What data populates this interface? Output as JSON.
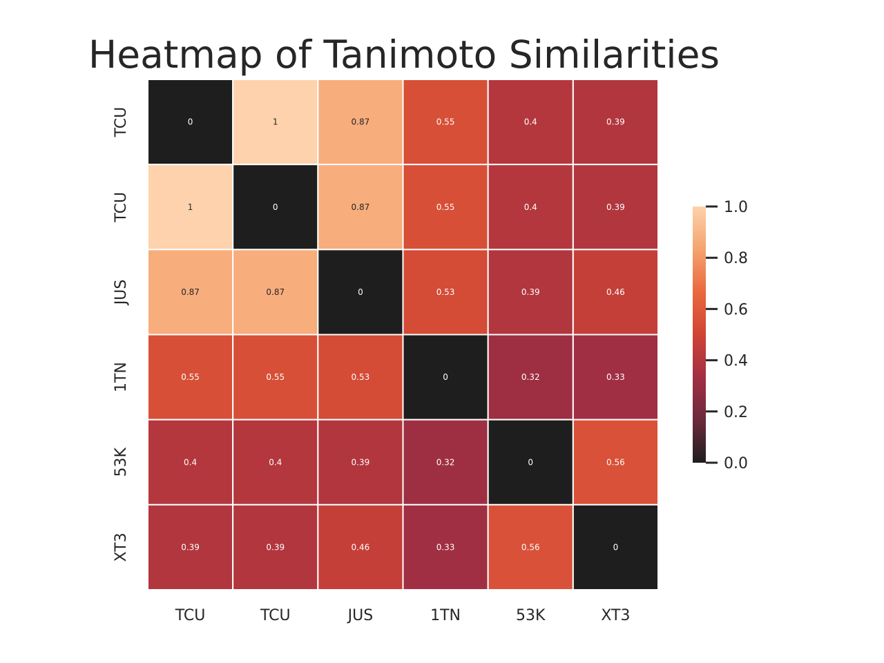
{
  "chart_data": {
    "type": "heatmap",
    "title": "Heatmap of Tanimoto Similarities",
    "x_labels": [
      "TCU",
      "TCU",
      "JUS",
      "1TN",
      "53K",
      "XT3"
    ],
    "y_labels": [
      "TCU",
      "TCU",
      "JUS",
      "1TN",
      "53K",
      "XT3"
    ],
    "values": [
      [
        0,
        1,
        0.87,
        0.55,
        0.4,
        0.39
      ],
      [
        1,
        0,
        0.87,
        0.55,
        0.4,
        0.39
      ],
      [
        0.87,
        0.87,
        0,
        0.53,
        0.39,
        0.46
      ],
      [
        0.55,
        0.55,
        0.53,
        0,
        0.32,
        0.33
      ],
      [
        0.4,
        0.4,
        0.39,
        0.32,
        0,
        0.56
      ],
      [
        0.39,
        0.39,
        0.46,
        0.33,
        0.56,
        0
      ]
    ],
    "cell_labels": [
      [
        "0",
        "1",
        "0.87",
        "0.55",
        "0.4",
        "0.39"
      ],
      [
        "1",
        "0",
        "0.87",
        "0.55",
        "0.4",
        "0.39"
      ],
      [
        "0.87",
        "0.87",
        "0",
        "0.53",
        "0.39",
        "0.46"
      ],
      [
        "0.55",
        "0.55",
        "0.53",
        "0",
        "0.32",
        "0.33"
      ],
      [
        "0.4",
        "0.4",
        "0.39",
        "0.32",
        "0",
        "0.56"
      ],
      [
        "0.39",
        "0.39",
        "0.46",
        "0.33",
        "0.56",
        "0"
      ]
    ],
    "colorbar": {
      "range": [
        0,
        1
      ],
      "ticks": [
        0,
        0.2,
        0.4,
        0.6,
        0.8,
        1
      ],
      "tick_labels": [
        "0.0",
        "0.2",
        "0.4",
        "0.6",
        "0.8",
        "1.0"
      ],
      "placement": "right"
    },
    "colormap": [
      "#1e1e1e",
      "#6b2a3c",
      "#a22f43",
      "#cf4434",
      "#e9693f",
      "#f5a36f",
      "#fdd2ac"
    ],
    "grid_line_color": "#ffffff"
  }
}
